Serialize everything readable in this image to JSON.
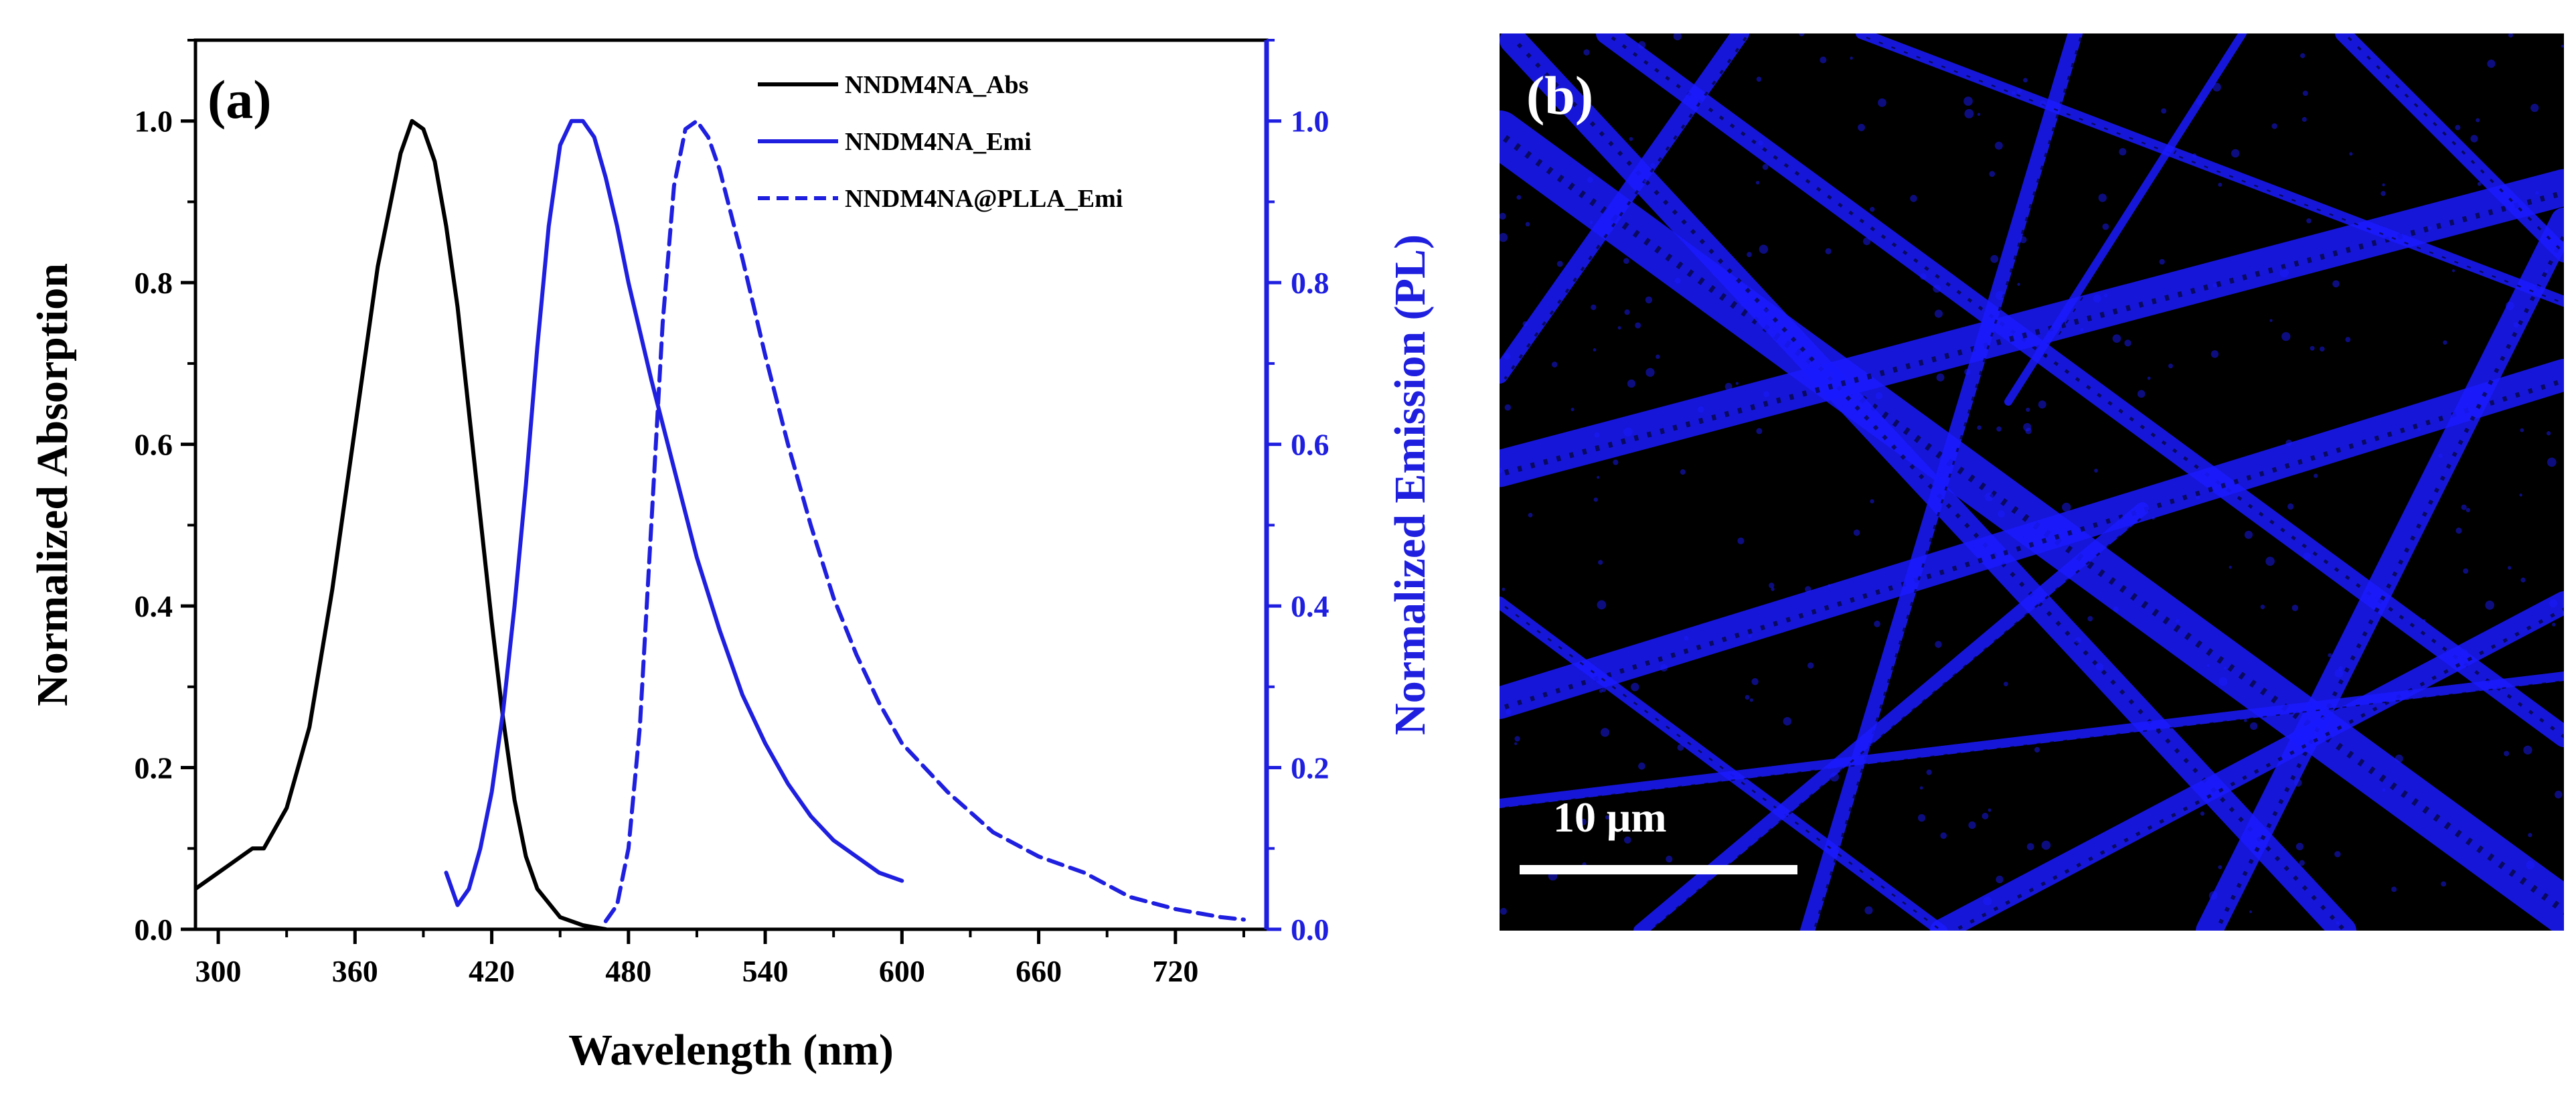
{
  "panel_a_label": "(a)",
  "panel_b_label": "(b)",
  "scale_bar_label": "10 μm",
  "colors": {
    "abs": "#000000",
    "emi": "#1f1fe0",
    "micro_bg": "#000000",
    "micro_fiber": "#1a1aff"
  },
  "chart_data": {
    "type": "line",
    "xlabel": "Wavelength (nm)",
    "ylabel": "Normalized Absorption",
    "y2label": "Normalized Emission (PL)",
    "xlim": [
      290,
      760
    ],
    "ylim": [
      0,
      1.1
    ],
    "y2lim": [
      0,
      1.1
    ],
    "xticks": [
      300,
      360,
      420,
      480,
      540,
      600,
      660,
      720
    ],
    "yticks": [
      0.0,
      0.2,
      0.4,
      0.6,
      0.8,
      1.0
    ],
    "y2ticks": [
      0.0,
      0.2,
      0.4,
      0.6,
      0.8,
      1.0
    ],
    "legend_position": "top-right",
    "series": [
      {
        "name": "NNDM4NA_Abs",
        "axis": "left",
        "style": "solid",
        "x": [
          290,
          300,
          305,
          310,
          315,
          320,
          330,
          340,
          350,
          360,
          370,
          380,
          385,
          390,
          395,
          400,
          405,
          410,
          415,
          420,
          425,
          430,
          435,
          440,
          450,
          460,
          470
        ],
        "y": [
          0.05,
          0.07,
          0.08,
          0.09,
          0.1,
          0.1,
          0.15,
          0.25,
          0.42,
          0.62,
          0.82,
          0.96,
          1.0,
          0.99,
          0.95,
          0.87,
          0.77,
          0.64,
          0.51,
          0.38,
          0.26,
          0.16,
          0.09,
          0.05,
          0.015,
          0.005,
          0.0
        ]
      },
      {
        "name": "NNDM4NA_Emi",
        "axis": "right",
        "style": "solid",
        "x": [
          400,
          405,
          410,
          415,
          420,
          425,
          430,
          435,
          440,
          445,
          450,
          455,
          460,
          465,
          470,
          475,
          480,
          490,
          500,
          510,
          520,
          530,
          540,
          550,
          560,
          570,
          580,
          590,
          600
        ],
        "y": [
          0.07,
          0.03,
          0.05,
          0.1,
          0.17,
          0.27,
          0.4,
          0.55,
          0.72,
          0.87,
          0.97,
          1.0,
          1.0,
          0.98,
          0.93,
          0.87,
          0.8,
          0.68,
          0.57,
          0.46,
          0.37,
          0.29,
          0.23,
          0.18,
          0.14,
          0.11,
          0.09,
          0.07,
          0.06
        ]
      },
      {
        "name": "NNDM4NA@PLLA_Emi",
        "axis": "right",
        "style": "dashed",
        "x": [
          470,
          475,
          480,
          485,
          490,
          495,
          500,
          505,
          510,
          515,
          520,
          530,
          540,
          550,
          560,
          570,
          580,
          590,
          600,
          620,
          640,
          660,
          680,
          700,
          720,
          740,
          750
        ],
        "y": [
          0.01,
          0.03,
          0.1,
          0.25,
          0.5,
          0.75,
          0.92,
          0.99,
          1.0,
          0.98,
          0.94,
          0.83,
          0.71,
          0.6,
          0.5,
          0.41,
          0.34,
          0.28,
          0.23,
          0.17,
          0.12,
          0.09,
          0.07,
          0.04,
          0.025,
          0.015,
          0.012
        ]
      }
    ]
  }
}
